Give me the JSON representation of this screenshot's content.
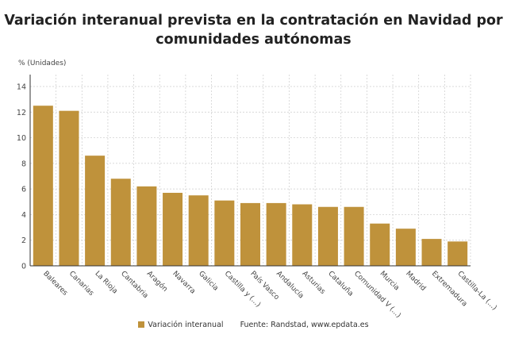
{
  "title": "Variación interanual prevista en la contratación en Navidad por comunidades autónomas",
  "chart_data": {
    "type": "bar",
    "title": "Variación interanual prevista en la contratación en Navidad por comunidades autónomas",
    "ylabel": "% (Unidades)",
    "xlabel": "",
    "ylim": [
      0,
      14
    ],
    "yticks": [
      0,
      2,
      4,
      6,
      8,
      10,
      12,
      14
    ],
    "grid": true,
    "legend": "bottom",
    "color": "#bf923b",
    "categories": [
      "Baleares",
      "Canarias",
      "La Rioja",
      "Cantabria",
      "Aragón",
      "Navarra",
      "Galicia",
      "Castilla y (...)",
      "País Vasco",
      "Andalucía",
      "Asturias",
      "Cataluña",
      "Comunidad V (...)",
      "Murcia",
      "Madrid",
      "Extremadura",
      "Castilla-La (...)"
    ],
    "series": [
      {
        "name": "Variación interanual",
        "values": [
          12.5,
          12.1,
          8.6,
          6.8,
          6.2,
          5.7,
          5.5,
          5.1,
          4.9,
          4.9,
          4.8,
          4.6,
          4.6,
          3.3,
          2.9,
          2.1,
          1.9
        ]
      }
    ]
  },
  "source": "Fuente: Randstad, www.epdata.es"
}
